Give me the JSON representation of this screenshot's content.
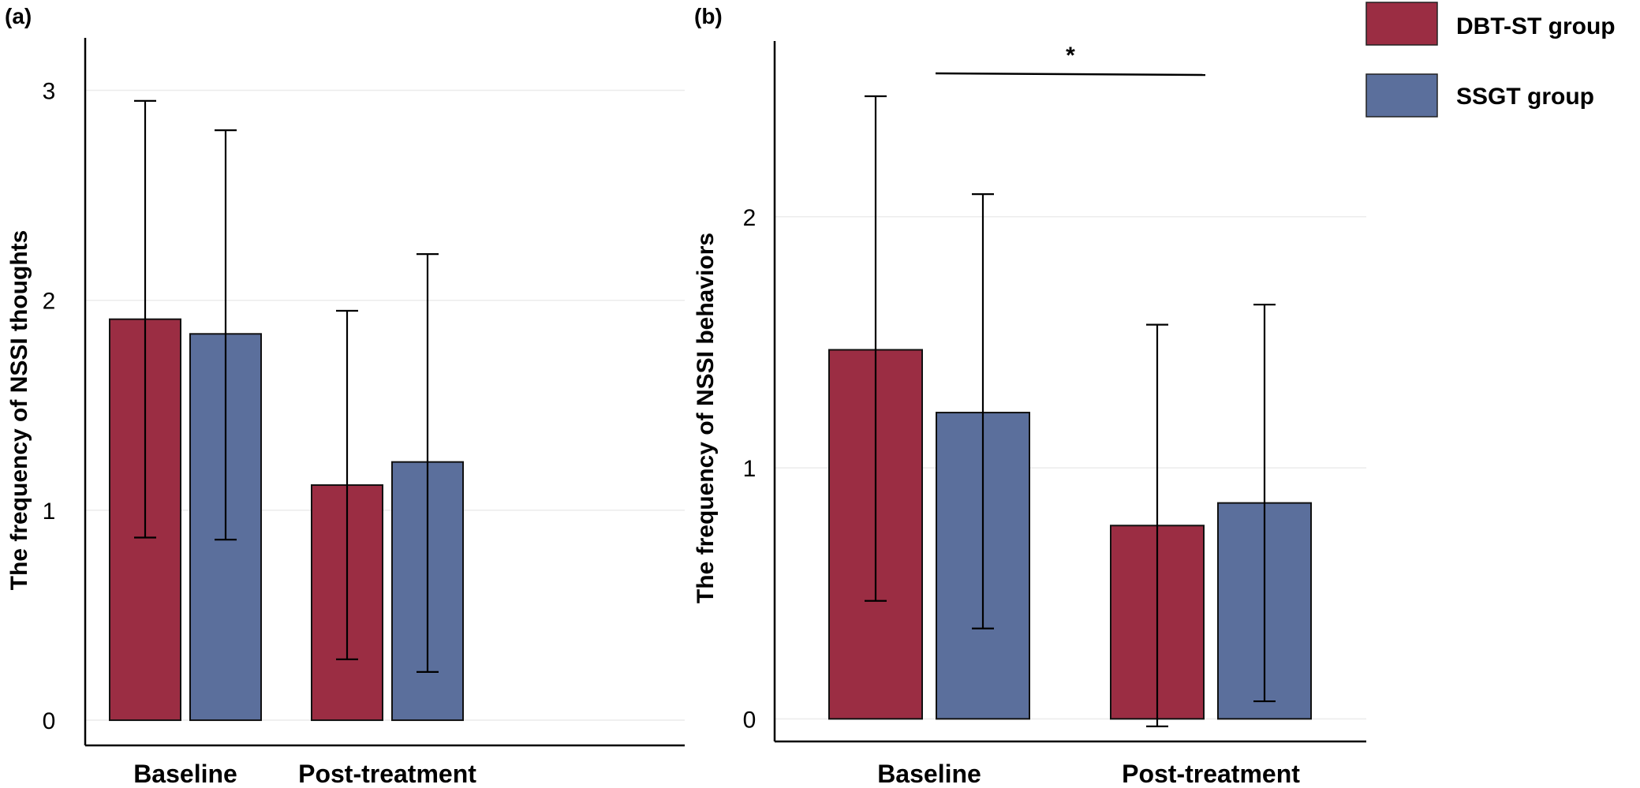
{
  "legend": {
    "items": [
      {
        "label": "DBT-ST group",
        "color": "#9b2d43"
      },
      {
        "label": "SSGT group",
        "color": "#5b6f9c"
      }
    ]
  },
  "chart_data": [
    {
      "type": "bar",
      "panel_label": "(a)",
      "ylabel": "The frequency of NSSI thoughts",
      "categories": [
        "Baseline",
        "Post-treatment"
      ],
      "ylim": [
        -0.12,
        3.25
      ],
      "yticks": [
        0,
        1,
        2,
        3
      ],
      "grid": true,
      "series": [
        {
          "name": "DBT-ST group",
          "color": "#9b2d43",
          "values": [
            1.91,
            1.12
          ],
          "error_low": [
            0.87,
            0.29
          ],
          "error_high": [
            2.95,
            1.95
          ]
        },
        {
          "name": "SSGT group",
          "color": "#5b6f9c",
          "values": [
            1.84,
            1.23
          ],
          "error_low": [
            0.86,
            0.23
          ],
          "error_high": [
            2.81,
            2.22
          ]
        }
      ]
    },
    {
      "type": "bar",
      "panel_label": "(b)",
      "ylabel": "The frequency of NSSI behaviors",
      "categories": [
        "Baseline",
        "Post-treatment"
      ],
      "ylim": [
        -0.09,
        2.7
      ],
      "yticks": [
        0,
        1,
        2
      ],
      "grid": true,
      "annotation": "*",
      "series": [
        {
          "name": "DBT-ST group",
          "color": "#9b2d43",
          "values": [
            1.47,
            0.77
          ],
          "error_low": [
            0.47,
            -0.03
          ],
          "error_high": [
            2.48,
            1.57
          ]
        },
        {
          "name": "SSGT group",
          "color": "#5b6f9c",
          "values": [
            1.22,
            0.86
          ],
          "error_low": [
            0.36,
            0.07
          ],
          "error_high": [
            2.09,
            1.65
          ]
        }
      ]
    }
  ]
}
